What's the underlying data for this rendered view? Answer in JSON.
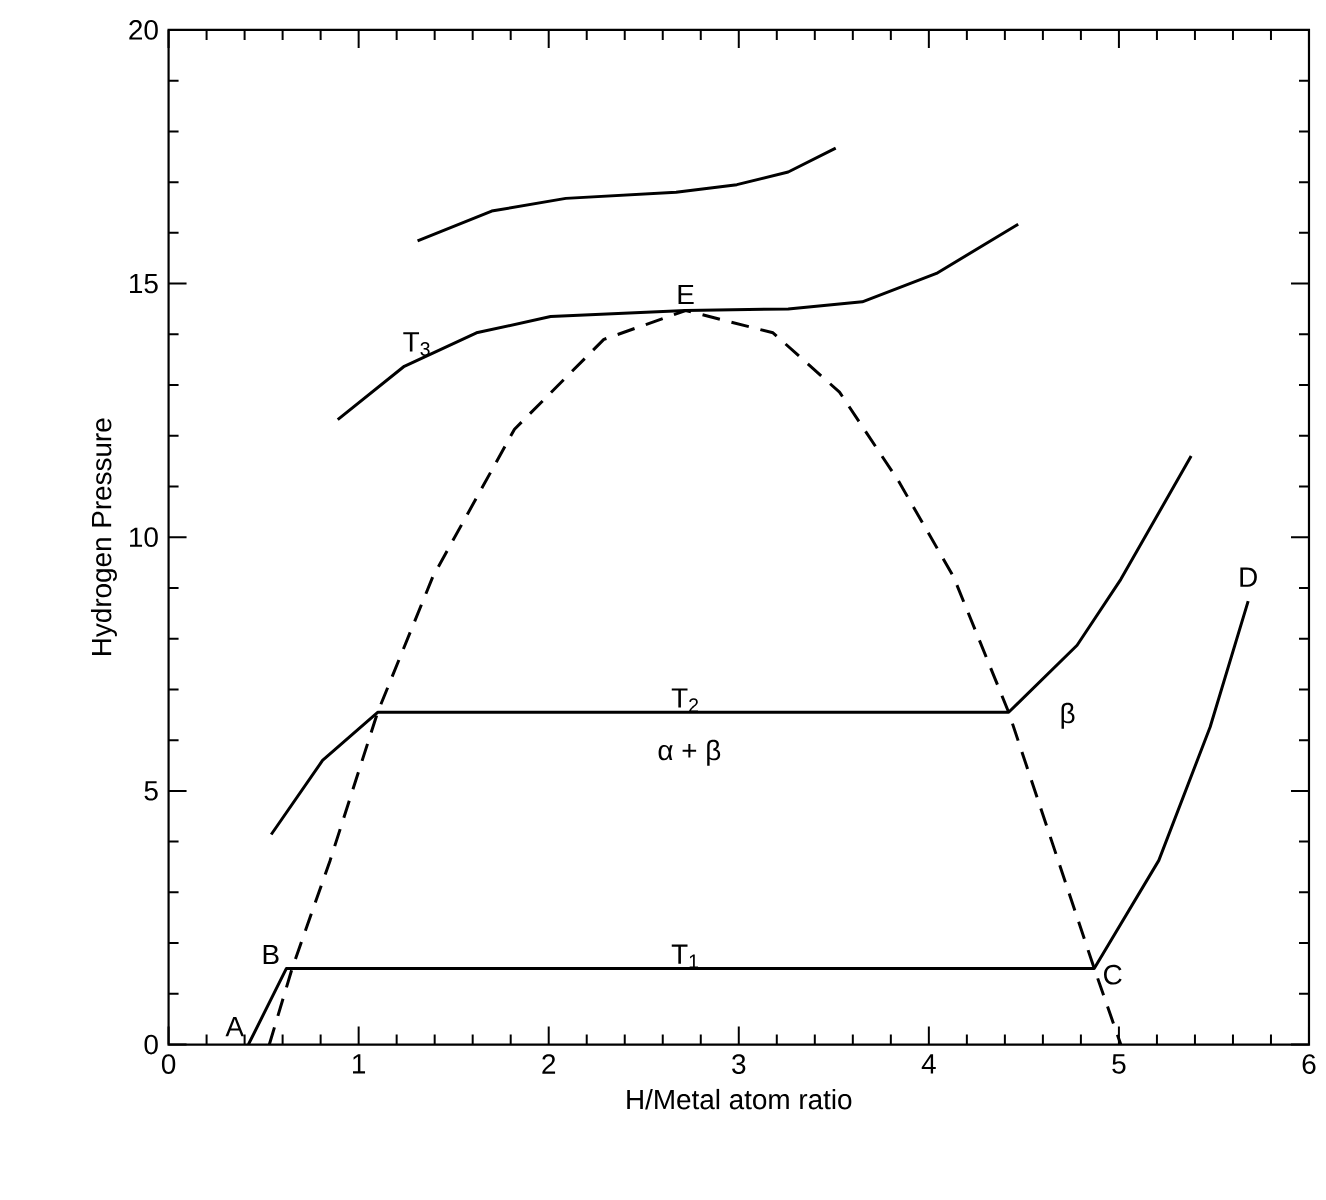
{
  "chart_data": {
    "type": "line",
    "xlabel": "H/Metal atom ratio",
    "ylabel": "Hydrogen Pressure",
    "xlim": [
      0,
      6
    ],
    "ylim": [
      0,
      20
    ],
    "xticks": [
      0,
      1,
      2,
      3,
      4,
      5,
      6
    ],
    "yticks": [
      0,
      5,
      10,
      15,
      20
    ],
    "grid": false,
    "marker": "none",
    "line_style": "solid",
    "series": [
      {
        "color": "#000000",
        "x": [
          0.42,
          0.62,
          4.87,
          5.21,
          5.48,
          5.68
        ],
        "values": [
          0,
          1.5,
          1.5,
          3.63,
          6.26,
          8.74
        ]
      },
      {
        "color": "#000000",
        "x": [
          0.54,
          0.81,
          1.1,
          4.42,
          4.78,
          5.01,
          5.38
        ],
        "values": [
          4.14,
          5.6,
          6.55,
          6.55,
          7.87,
          9.17,
          11.6
        ]
      },
      {
        "color": "#000000",
        "x": [
          0.89,
          1.24,
          1.62,
          2.01,
          2.72,
          3.26,
          3.65,
          4.04,
          4.47
        ],
        "values": [
          12.32,
          13.37,
          14.03,
          14.35,
          14.47,
          14.5,
          14.64,
          15.2,
          16.17
        ]
      },
      {
        "color": "#000000",
        "x": [
          1.31,
          1.7,
          2.09,
          2.67,
          2.99,
          3.26,
          3.51
        ],
        "values": [
          15.84,
          16.43,
          16.68,
          16.8,
          16.95,
          17.2,
          17.67
        ]
      },
      {
        "color": "#000000",
        "line_style": "dashed",
        "x": [
          0.53,
          0.65,
          0.85,
          1.1,
          1.39,
          1.82,
          2.29,
          2.72,
          3.18,
          3.53,
          3.84,
          4.13,
          4.42,
          4.87,
          5.01
        ],
        "values": [
          0,
          1.5,
          3.63,
          6.55,
          9.22,
          12.13,
          13.9,
          14.47,
          14.03,
          12.86,
          11.11,
          9.22,
          6.55,
          1.5,
          0
        ]
      }
    ],
    "annotations": [
      {
        "text": "A",
        "x": 0.42,
        "y": 0
      },
      {
        "text": "B",
        "x": 0.62,
        "y": 1.5
      },
      {
        "text": "C",
        "x": 4.87,
        "y": 1.5
      },
      {
        "text": "D",
        "x": 5.68,
        "y": 8.74
      },
      {
        "text": "E",
        "x": 2.72,
        "y": 14.47
      },
      {
        "text": "T$_{1}$",
        "x": 2.72,
        "y": 1.5
      },
      {
        "text": "T$_{2}$",
        "x": 2.72,
        "y": 6.55
      },
      {
        "text": "T$_{3}$",
        "x": 1.24,
        "y": 13.37
      },
      "α + β",
      "β"
    ]
  }
}
